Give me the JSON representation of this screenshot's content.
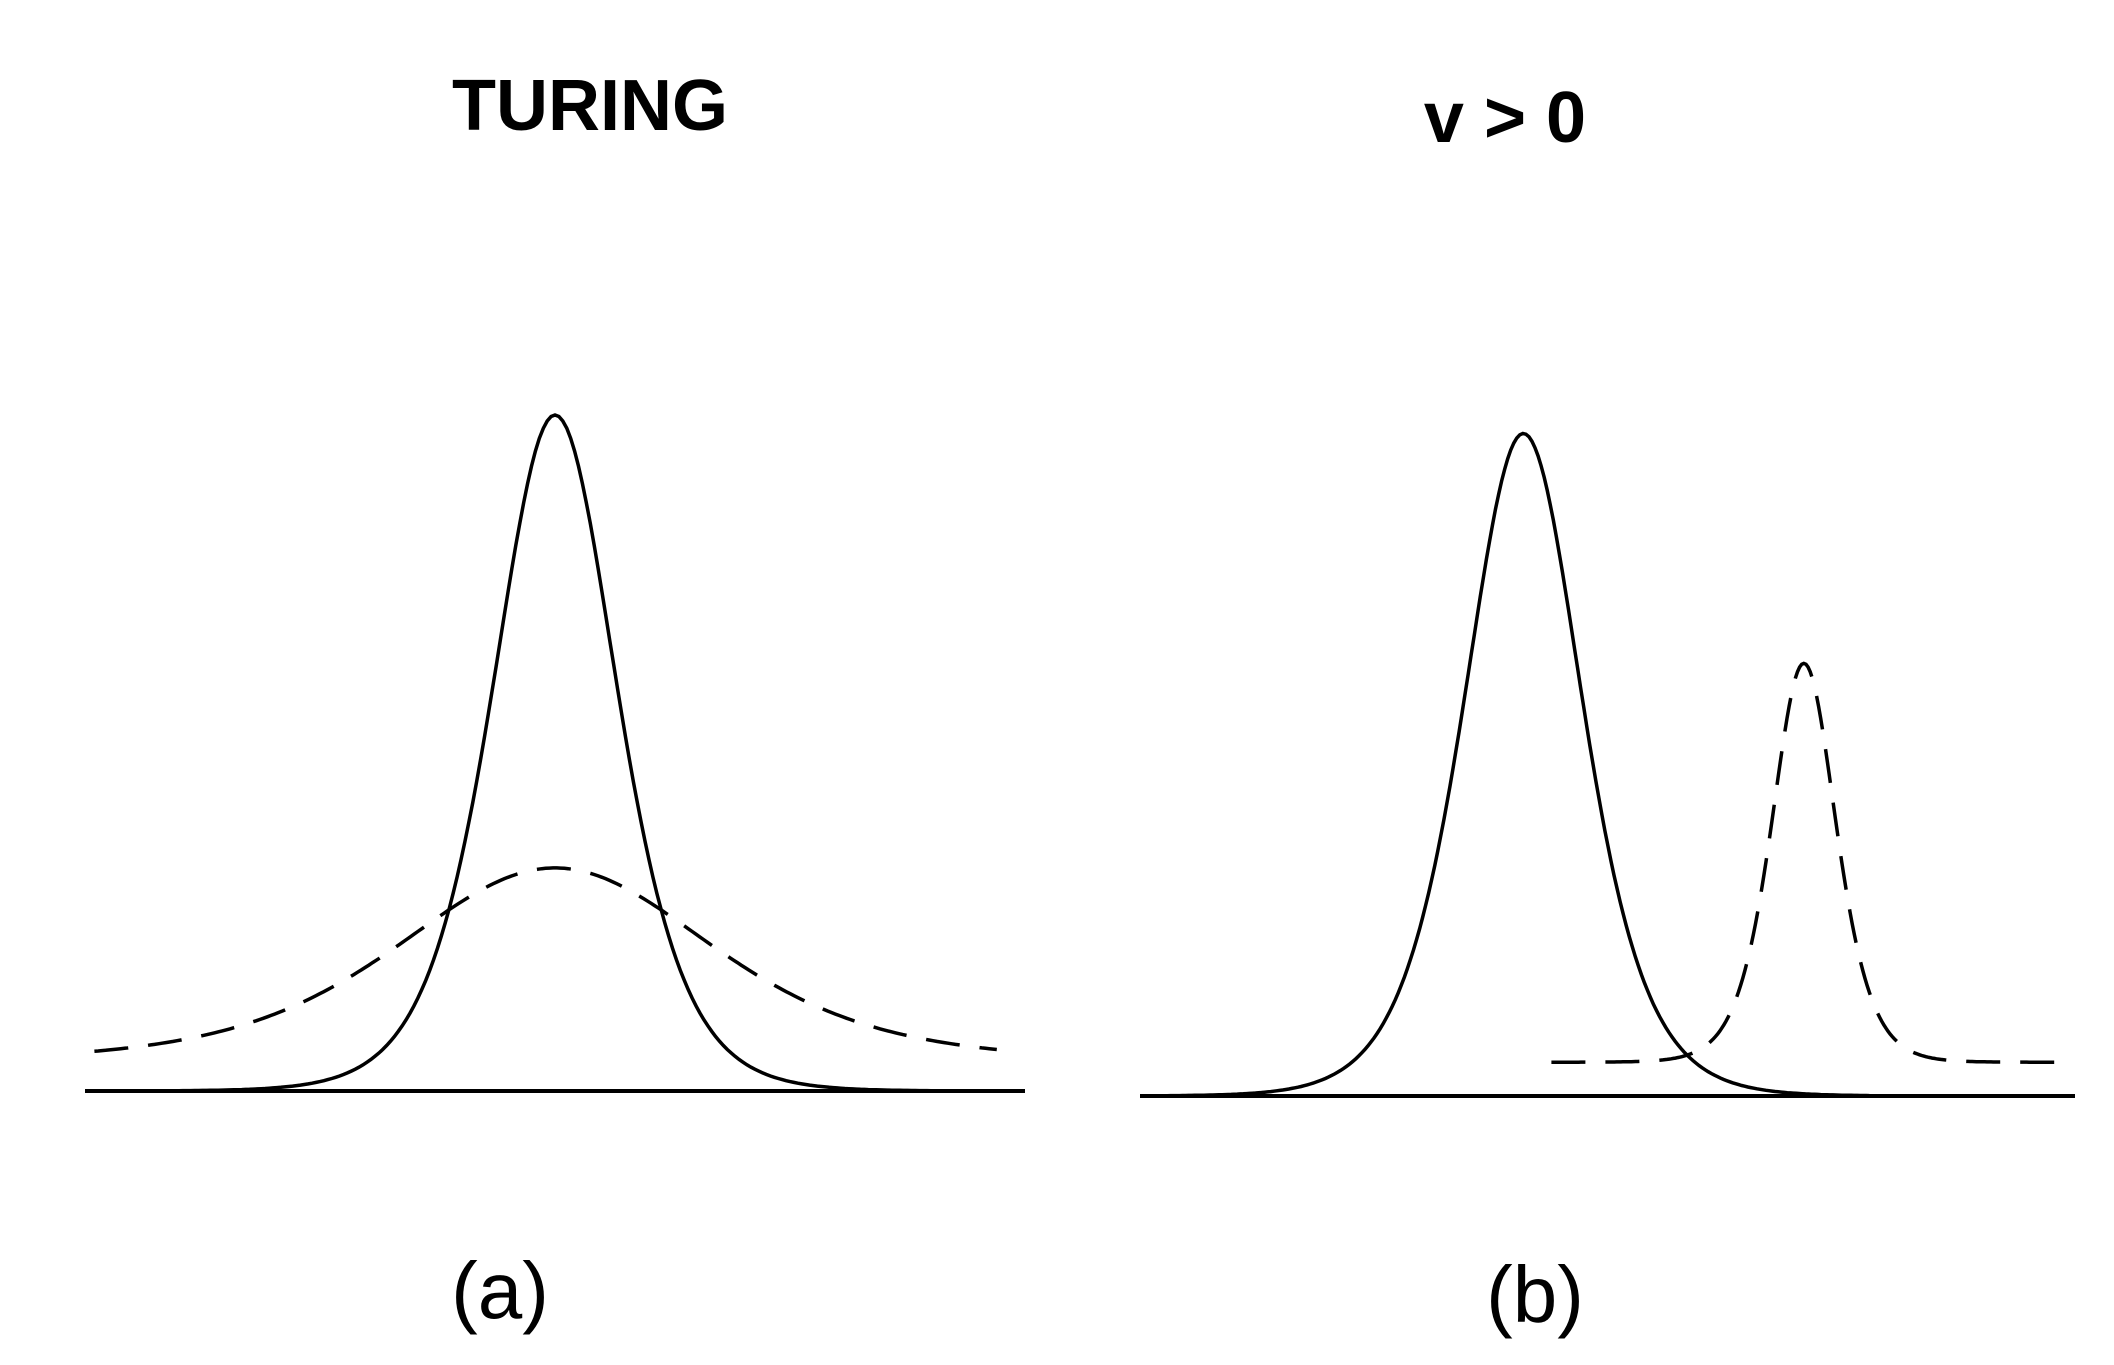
{
  "panels": [
    {
      "id": "a",
      "title": "TURING",
      "caption": "(a)",
      "curves": [
        {
          "style": "solid",
          "peak_x": 0.5,
          "height": 1.0,
          "width": 0.115,
          "baseline": 0.0,
          "x_start": 0.0,
          "x_end": 1.0
        },
        {
          "style": "dashed",
          "peak_x": 0.5,
          "height": 0.33,
          "width": 0.29,
          "baseline": 0.045,
          "x_start": 0.01,
          "x_end": 0.97
        }
      ]
    },
    {
      "id": "b",
      "title": "v > 0",
      "caption": "(b)",
      "curves": [
        {
          "style": "solid",
          "peak_x": 0.41,
          "height": 0.98,
          "width": 0.11,
          "baseline": 0.0,
          "x_start": 0.0,
          "x_end": 0.78
        },
        {
          "style": "dashed",
          "peak_x": 0.71,
          "height": 0.64,
          "width": 0.06,
          "baseline": 0.05,
          "x_start": 0.44,
          "x_end": 0.98
        }
      ]
    }
  ]
}
